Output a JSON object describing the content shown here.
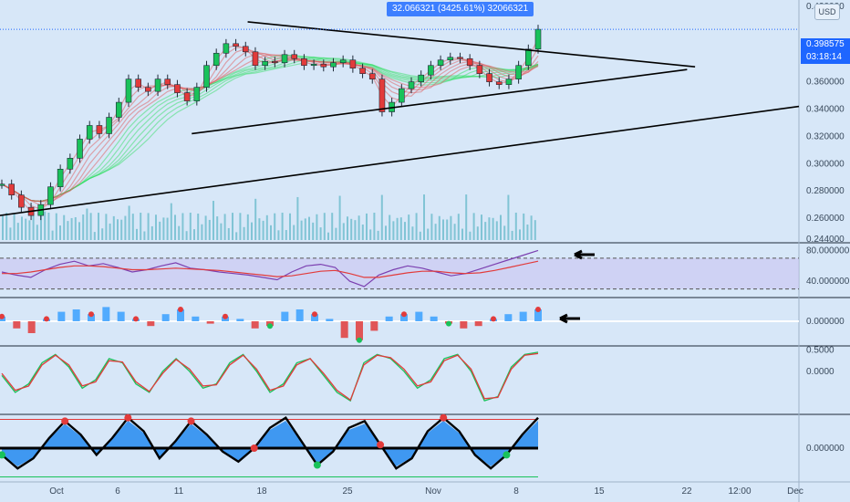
{
  "header": {
    "crosshair_readout": "32.066321 (3425.61%) 32066321",
    "currency": "USD"
  },
  "last_price": {
    "value": "0.398575",
    "countdown": "03:18:14",
    "color": "#1e66ff"
  },
  "colors": {
    "background": "#d7e7f8",
    "up": "#19c25a",
    "down": "#e23b3b",
    "ribbon_bull": "#33e066",
    "ribbon_bear": "#e05a5a",
    "trendline": "#000000",
    "rsi_band": "#c9c4f2",
    "volume": "#3aa8b8"
  },
  "chart_data": [
    {
      "type": "candlestick",
      "name": "main",
      "y_ticks": [
        "0.420000",
        "0.360000",
        "0.340000",
        "0.320000",
        "0.300000",
        "0.280000",
        "0.260000",
        "0.244000"
      ],
      "y_tick_values": [
        0.42,
        0.36,
        0.34,
        0.32,
        0.3,
        0.28,
        0.26,
        0.244
      ],
      "ylim": [
        0.244,
        0.42
      ],
      "x_ticks": [
        "Oct",
        "6",
        "11",
        "18",
        "25",
        "Nov",
        "8",
        "15",
        "22",
        "12:00",
        "Dec"
      ],
      "close_path": [
        0.285,
        0.277,
        0.268,
        0.262,
        0.27,
        0.283,
        0.296,
        0.304,
        0.318,
        0.328,
        0.322,
        0.334,
        0.345,
        0.362,
        0.356,
        0.353,
        0.362,
        0.358,
        0.352,
        0.346,
        0.356,
        0.372,
        0.381,
        0.388,
        0.386,
        0.382,
        0.372,
        0.375,
        0.374,
        0.38,
        0.377,
        0.372,
        0.373,
        0.371,
        0.374,
        0.376,
        0.37,
        0.366,
        0.362,
        0.338,
        0.345,
        0.355,
        0.36,
        0.365,
        0.372,
        0.376,
        0.378,
        0.377,
        0.372,
        0.366,
        0.36,
        0.358,
        0.362,
        0.372,
        0.384,
        0.3985
      ],
      "trendlines": [
        {
          "from": [
            0.0,
            0.262
          ],
          "to": [
            1.0,
            0.342
          ]
        },
        {
          "from": [
            0.24,
            0.322
          ],
          "to": [
            0.86,
            0.369
          ]
        },
        {
          "from": [
            0.31,
            0.404
          ],
          "to": [
            0.87,
            0.371
          ]
        }
      ]
    },
    {
      "type": "line",
      "name": "rsi",
      "y_ticks": [
        "80.000000",
        "40.000000"
      ],
      "y_tick_values": [
        80,
        40
      ],
      "ylim": [
        20,
        90
      ],
      "band": [
        30,
        70
      ],
      "series": [
        {
          "values": [
            52,
            48,
            45,
            55,
            62,
            66,
            60,
            63,
            58,
            52,
            55,
            60,
            64,
            57,
            55,
            52,
            50,
            48,
            45,
            42,
            52,
            60,
            62,
            58,
            40,
            33,
            48,
            55,
            60,
            57,
            52,
            47,
            50,
            56,
            62,
            68,
            74,
            80
          ],
          "color": "#7b3fb0"
        },
        {
          "values": [
            50,
            50,
            52,
            55,
            58,
            60,
            60,
            59,
            57,
            55,
            55,
            56,
            57,
            56,
            55,
            54,
            52,
            50,
            48,
            46,
            47,
            50,
            53,
            54,
            50,
            45,
            45,
            48,
            51,
            53,
            53,
            51,
            50,
            51,
            54,
            58,
            62,
            66
          ],
          "color": "#e23b3b"
        }
      ]
    },
    {
      "type": "histogram",
      "name": "macd",
      "y_ticks": [
        "0.000000"
      ],
      "y_tick_values": [
        0
      ],
      "ylim": [
        -1,
        1
      ],
      "values": [
        0.2,
        -0.3,
        -0.5,
        0.1,
        0.4,
        0.5,
        0.3,
        0.6,
        0.4,
        0.1,
        -0.2,
        0.3,
        0.5,
        0.2,
        -0.1,
        0.2,
        0.1,
        -0.3,
        -0.2,
        0.4,
        0.5,
        0.3,
        0.1,
        -0.7,
        -0.8,
        -0.4,
        0.2,
        0.3,
        0.4,
        0.2,
        -0.1,
        -0.3,
        -0.2,
        0.1,
        0.3,
        0.4,
        0.5
      ]
    },
    {
      "type": "line",
      "name": "stochastic",
      "y_ticks": [
        "0.5000",
        "0.0000"
      ],
      "y_tick_values": [
        0.5,
        0
      ],
      "ylim": [
        -1,
        0.6
      ],
      "series": [
        {
          "values": [
            -0.1,
            -0.5,
            -0.3,
            0.2,
            0.4,
            0.1,
            -0.4,
            -0.2,
            0.3,
            0.2,
            -0.3,
            -0.5,
            0.0,
            0.3,
            0.0,
            -0.4,
            -0.3,
            0.2,
            0.4,
            0.0,
            -0.5,
            -0.3,
            0.2,
            0.3,
            -0.1,
            -0.5,
            -0.7,
            0.2,
            0.4,
            0.3,
            0.0,
            -0.4,
            -0.2,
            0.3,
            0.4,
            0.0,
            -0.7,
            -0.6,
            0.1,
            0.4,
            0.45
          ],
          "color": "#19c25a"
        },
        {
          "values": [
            -0.05,
            -0.45,
            -0.35,
            0.15,
            0.38,
            0.15,
            -0.35,
            -0.25,
            0.25,
            0.22,
            -0.25,
            -0.48,
            -0.05,
            0.28,
            0.05,
            -0.35,
            -0.32,
            0.15,
            0.38,
            0.05,
            -0.45,
            -0.35,
            0.15,
            0.3,
            -0.05,
            -0.45,
            -0.68,
            0.15,
            0.38,
            0.32,
            0.05,
            -0.35,
            -0.25,
            0.25,
            0.38,
            0.05,
            -0.65,
            -0.62,
            0.05,
            0.38,
            0.42
          ],
          "color": "#e23b3b"
        }
      ]
    },
    {
      "type": "area",
      "name": "oscillator",
      "y_ticks": [
        "0.000000"
      ],
      "y_tick_values": [
        0
      ],
      "ylim": [
        -1,
        1
      ],
      "values": [
        -0.2,
        -0.6,
        -0.3,
        0.3,
        0.8,
        0.4,
        -0.2,
        0.3,
        0.9,
        0.5,
        -0.3,
        0.2,
        0.8,
        0.4,
        -0.1,
        -0.4,
        0.0,
        0.6,
        0.9,
        0.2,
        -0.5,
        -0.1,
        0.6,
        0.8,
        0.1,
        -0.6,
        -0.3,
        0.5,
        0.9,
        0.5,
        -0.2,
        -0.6,
        -0.2,
        0.4,
        0.9
      ]
    }
  ]
}
